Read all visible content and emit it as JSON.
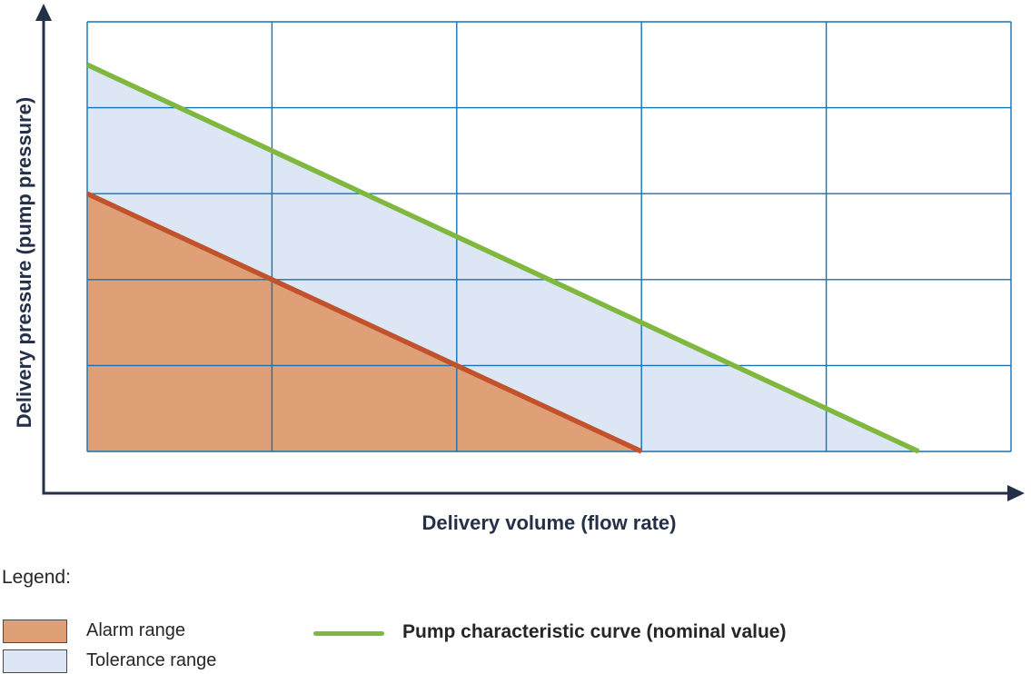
{
  "axes": {
    "x_label": "Delivery volume (flow rate)",
    "y_label": "Delivery pressure (pump pressure)"
  },
  "legend": {
    "heading": "Legend:",
    "alarm_label": "Alarm range",
    "tolerance_label": "Tolerance range",
    "pump_label": "Pump characteristic curve (nominal value)"
  },
  "colors": {
    "axis": "#242F48",
    "grid": "#1273B5",
    "pump_curve": "#80B73F",
    "alarm_line": "#C1522C",
    "alarm_fill": "#DFA077",
    "tolerance_fill": "#DCE6F5",
    "swatch_border": "#4A4A4A",
    "text": "#262626"
  },
  "chart_data": {
    "type": "area",
    "title": "",
    "xlabel": "Delivery volume (flow rate)",
    "ylabel": "Delivery pressure (pump pressure)",
    "x_range": [
      0,
      5
    ],
    "y_range": [
      0,
      5
    ],
    "grid": {
      "on": true,
      "columns": 5,
      "rows": 5,
      "color": "#1273B5"
    },
    "tick_labels": "none (qualitative axes, no numeric ticks shown)",
    "series": [
      {
        "name": "Pump characteristic curve (nominal value)",
        "type": "line",
        "color": "#80B73F",
        "points": [
          [
            0,
            4.5
          ],
          [
            4.5,
            0
          ]
        ]
      },
      {
        "name": "Alarm limit curve",
        "type": "line",
        "color": "#C1522C",
        "points": [
          [
            0,
            3
          ],
          [
            3,
            0
          ]
        ]
      }
    ],
    "regions": [
      {
        "name": "Tolerance range",
        "color": "#DCE6F5",
        "polygon": [
          [
            0,
            3
          ],
          [
            0,
            4.5
          ],
          [
            4.5,
            0
          ],
          [
            3,
            0
          ]
        ]
      },
      {
        "name": "Alarm range",
        "color": "#DFA077",
        "polygon": [
          [
            0,
            0
          ],
          [
            0,
            3
          ],
          [
            3,
            0
          ]
        ]
      }
    ],
    "legend_position": "below chart"
  }
}
